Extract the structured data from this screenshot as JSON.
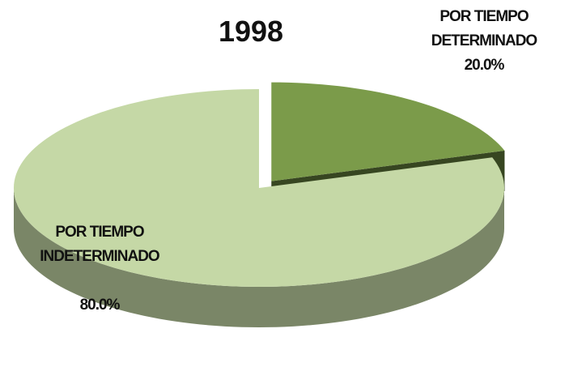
{
  "chart_data": {
    "type": "pie",
    "title": "1998",
    "categories": [
      "POR TIEMPO INDETERMINADO",
      "POR TIEMPO DETERMINADO"
    ],
    "values": [
      80,
      20
    ],
    "value_labels": [
      "80.0%",
      "20.0%"
    ],
    "colors": [
      "#c5d8a6",
      "#7b9b4a"
    ]
  }
}
